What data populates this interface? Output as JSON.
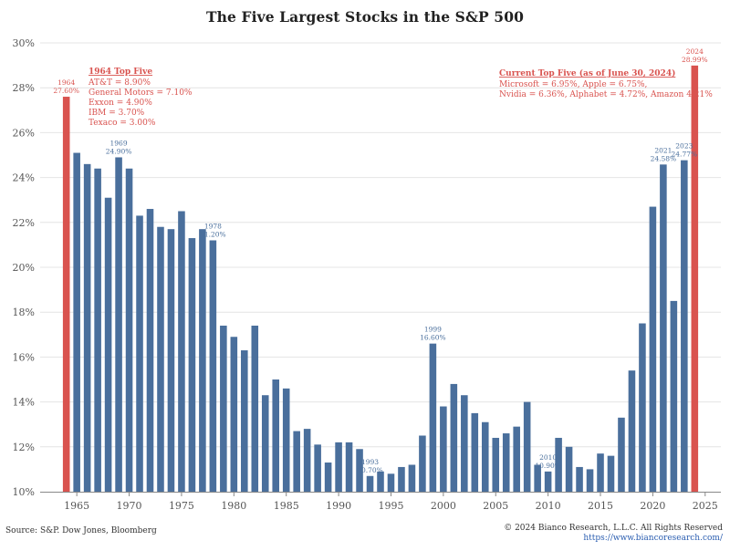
{
  "chart_data": {
    "type": "bar",
    "title": "The Five Largest Stocks in the S&P 500",
    "xlabel": "",
    "ylabel": "",
    "x": [
      1964,
      1965,
      1966,
      1967,
      1968,
      1969,
      1970,
      1971,
      1972,
      1973,
      1974,
      1975,
      1976,
      1977,
      1978,
      1979,
      1980,
      1981,
      1982,
      1983,
      1984,
      1985,
      1986,
      1987,
      1988,
      1989,
      1990,
      1991,
      1992,
      1993,
      1994,
      1995,
      1996,
      1997,
      1998,
      1999,
      2000,
      2001,
      2002,
      2003,
      2004,
      2005,
      2006,
      2007,
      2008,
      2009,
      2010,
      2011,
      2012,
      2013,
      2014,
      2015,
      2016,
      2017,
      2018,
      2019,
      2020,
      2021,
      2022,
      2023,
      2024
    ],
    "values": [
      27.6,
      25.1,
      24.6,
      24.4,
      23.1,
      24.9,
      24.4,
      22.3,
      22.6,
      21.8,
      21.7,
      22.5,
      21.3,
      21.7,
      21.2,
      17.4,
      16.9,
      16.3,
      17.4,
      14.3,
      15.0,
      14.6,
      12.7,
      12.8,
      12.1,
      11.3,
      12.2,
      12.2,
      11.9,
      10.7,
      10.9,
      10.8,
      11.1,
      11.2,
      12.5,
      16.6,
      13.8,
      14.8,
      14.3,
      13.5,
      13.1,
      12.4,
      12.6,
      12.9,
      14.0,
      11.2,
      10.9,
      12.4,
      12.0,
      11.1,
      11.0,
      11.7,
      11.6,
      13.3,
      15.4,
      17.5,
      22.7,
      24.58,
      18.5,
      24.77,
      28.99
    ],
    "highlight": [
      1964,
      2024
    ],
    "ylim": [
      10,
      30
    ],
    "yticks": [
      "10%",
      "12%",
      "14%",
      "16%",
      "18%",
      "20%",
      "22%",
      "24%",
      "26%",
      "28%",
      "30%"
    ],
    "xticks": [
      "1965",
      "1970",
      "1975",
      "1980",
      "1985",
      "1990",
      "1995",
      "2000",
      "2005",
      "2010",
      "2015",
      "2020",
      "2025"
    ],
    "xtick_values": [
      1965,
      1970,
      1975,
      1980,
      1985,
      1990,
      1995,
      2000,
      2005,
      2010,
      2015,
      2020,
      2025
    ],
    "grid": true,
    "colors": {
      "bar": "#4a6f9c",
      "highlight": "#d9534f",
      "label_blue": "#4a6f9c",
      "label_red": "#d9534f"
    },
    "point_labels": [
      {
        "year": 1964,
        "lines": [
          "1964",
          "27.60%"
        ],
        "color": "red"
      },
      {
        "year": 1969,
        "lines": [
          "1969",
          "24.90%"
        ],
        "color": "blue"
      },
      {
        "year": 1978,
        "lines": [
          "1978",
          "21.20%"
        ],
        "color": "blue"
      },
      {
        "year": 1993,
        "lines": [
          "1993",
          "10.70%"
        ],
        "color": "blue"
      },
      {
        "year": 1999,
        "lines": [
          "1999",
          "16.60%"
        ],
        "color": "blue"
      },
      {
        "year": 2010,
        "lines": [
          "2010",
          "10.90%"
        ],
        "color": "blue"
      },
      {
        "year": 2021,
        "lines": [
          "2021",
          "24.58%"
        ],
        "color": "blue"
      },
      {
        "year": 2023,
        "lines": [
          "2023",
          "24.77%"
        ],
        "color": "blue"
      },
      {
        "year": 2024,
        "lines": [
          "2024",
          "28.99%"
        ],
        "color": "red"
      }
    ],
    "annotations": [
      {
        "heading": "1964 Top Five",
        "lines": [
          "AT&T = 8.90%",
          "General Motors = 7.10%",
          "Exxon = 4.90%",
          "IBM = 3.70%",
          "Texaco = 3.00%"
        ]
      },
      {
        "heading": "Current Top Five (as of June 30, 2024)",
        "lines": [
          "Microsoft = 6.95%, Apple = 6.75%,",
          "Nvidia = 6.36%, Alphabet = 4.72%, Amazon 4.21%"
        ]
      }
    ]
  },
  "footer": {
    "source": "Source: S&P. Dow Jones, Bloomberg",
    "copyright": "© 2024 Bianco Research, L.L.C. All Rights Reserved",
    "url": "https://www.biancoresearch.com/"
  }
}
